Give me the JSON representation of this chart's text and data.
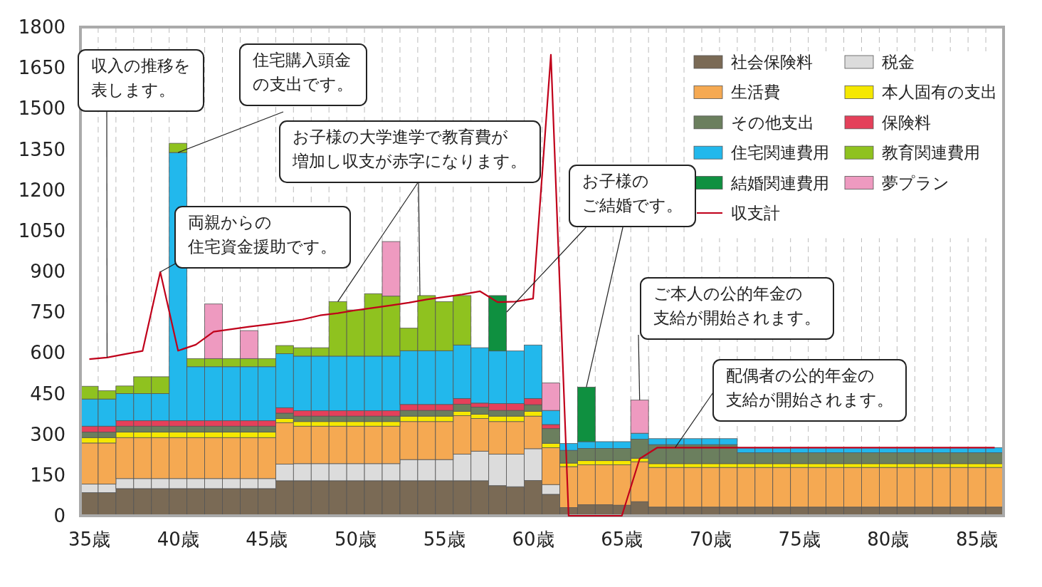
{
  "chart_data": {
    "type": "bar",
    "stacked": true,
    "x": [
      35,
      36,
      37,
      38,
      39,
      40,
      41,
      42,
      43,
      44,
      45,
      46,
      47,
      48,
      49,
      50,
      51,
      52,
      53,
      54,
      55,
      56,
      57,
      58,
      59,
      60,
      61,
      62,
      63,
      64,
      65,
      66,
      67,
      68,
      69,
      70,
      71,
      72,
      73,
      74,
      75,
      76,
      77,
      78,
      79,
      80,
      81,
      82,
      83,
      84,
      85,
      86
    ],
    "xlim": [
      34.5,
      86.5
    ],
    "xticks": [
      {
        "value": 35,
        "label": "35歳"
      },
      {
        "value": 40,
        "label": "40歳"
      },
      {
        "value": 45,
        "label": "45歳"
      },
      {
        "value": 50,
        "label": "50歳"
      },
      {
        "value": 55,
        "label": "55歳"
      },
      {
        "value": 60,
        "label": "60歳"
      },
      {
        "value": 65,
        "label": "65歳"
      },
      {
        "value": 70,
        "label": "70歳"
      },
      {
        "value": 75,
        "label": "75歳"
      },
      {
        "value": 80,
        "label": "80歳"
      },
      {
        "value": 85,
        "label": "85歳"
      }
    ],
    "series": [
      {
        "name": "社会保険料",
        "color": "#7a6a55",
        "values": [
          85,
          85,
          100,
          100,
          100,
          100,
          100,
          100,
          100,
          100,
          100,
          129,
          129,
          129,
          129,
          129,
          129,
          129,
          129,
          129,
          129,
          129,
          129,
          111,
          107,
          130,
          79,
          30,
          41,
          41,
          39,
          52,
          32,
          32,
          32,
          32,
          32,
          32,
          32,
          32,
          32,
          32,
          32,
          32,
          32,
          32,
          32,
          32,
          32,
          32,
          32,
          32
        ]
      },
      {
        "name": "税金",
        "color": "#dcdcdc",
        "values": [
          32,
          32,
          37,
          37,
          37,
          37,
          37,
          37,
          37,
          37,
          37,
          61,
          63,
          63,
          63,
          63,
          63,
          63,
          78,
          78,
          78,
          98,
          109,
          116,
          120,
          117,
          36,
          0,
          0,
          0,
          0,
          0,
          0,
          0,
          0,
          0,
          0,
          0,
          0,
          0,
          0,
          0,
          0,
          0,
          0,
          0,
          0,
          0,
          0,
          0,
          0,
          0
        ]
      },
      {
        "name": "生活費",
        "color": "#f5a952",
        "values": [
          151,
          151,
          151,
          151,
          151,
          151,
          151,
          151,
          151,
          151,
          151,
          153,
          138,
          138,
          138,
          138,
          138,
          138,
          140,
          140,
          140,
          142,
          120,
          120,
          120,
          120,
          136,
          151,
          147,
          147,
          149,
          147,
          146,
          146,
          146,
          146,
          146,
          146,
          146,
          146,
          146,
          146,
          146,
          146,
          146,
          146,
          146,
          146,
          146,
          146,
          146,
          146
        ]
      },
      {
        "name": "本人固有の支出",
        "color": "#f5e800",
        "values": [
          20,
          20,
          20,
          20,
          20,
          20,
          20,
          20,
          20,
          20,
          20,
          15,
          17,
          17,
          17,
          17,
          17,
          17,
          20,
          20,
          20,
          16,
          16,
          20,
          20,
          18,
          16,
          13,
          15,
          15,
          15,
          13,
          14,
          14,
          14,
          14,
          14,
          14,
          14,
          14,
          14,
          14,
          14,
          14,
          14,
          14,
          14,
          14,
          14,
          14,
          14,
          14
        ]
      },
      {
        "name": "その他支出",
        "color": "#6b7f5e",
        "values": [
          20,
          20,
          22,
          22,
          22,
          22,
          22,
          22,
          22,
          22,
          22,
          20,
          20,
          20,
          20,
          20,
          20,
          20,
          21,
          21,
          21,
          26,
          26,
          21,
          21,
          24,
          54,
          47,
          45,
          45,
          45,
          70,
          70,
          70,
          70,
          70,
          70,
          40,
          40,
          40,
          40,
          40,
          40,
          40,
          40,
          40,
          40,
          40,
          40,
          40,
          40,
          40
        ]
      },
      {
        "name": "保険料",
        "color": "#e4405a",
        "values": [
          22,
          22,
          20,
          20,
          20,
          20,
          20,
          20,
          20,
          20,
          20,
          20,
          20,
          20,
          20,
          20,
          20,
          20,
          22,
          22,
          22,
          21,
          15,
          25,
          25,
          23,
          15,
          0,
          0,
          0,
          0,
          0,
          0,
          0,
          0,
          0,
          0,
          0,
          0,
          0,
          0,
          0,
          0,
          0,
          0,
          0,
          0,
          0,
          0,
          0,
          0,
          0
        ]
      },
      {
        "name": "住宅関連費用",
        "color": "#22b8ec",
        "values": [
          100,
          100,
          100,
          100,
          100,
          988,
          199,
          199,
          199,
          199,
          199,
          199,
          201,
          201,
          201,
          201,
          201,
          201,
          198,
          198,
          198,
          197,
          204,
          194,
          194,
          197,
          52,
          25,
          25,
          25,
          25,
          22,
          22,
          22,
          22,
          22,
          22,
          19,
          19,
          19,
          19,
          19,
          19,
          19,
          19,
          19,
          19,
          19,
          19,
          19,
          19,
          19
        ]
      },
      {
        "name": "教育関連費用",
        "color": "#8fc21f",
        "values": [
          47,
          31,
          28,
          62,
          62,
          34,
          30,
          30,
          30,
          30,
          30,
          30,
          31,
          31,
          201,
          170,
          230,
          221,
          83,
          203,
          181,
          182,
          0,
          0,
          0,
          0,
          0,
          0,
          0,
          0,
          0,
          0,
          0,
          0,
          0,
          0,
          0,
          0,
          0,
          0,
          0,
          0,
          0,
          0,
          0,
          0,
          0,
          0,
          0,
          0,
          0,
          0
        ]
      },
      {
        "name": "結婚関連費用",
        "color": "#0f9040",
        "values": [
          0,
          0,
          0,
          0,
          0,
          0,
          0,
          0,
          0,
          0,
          0,
          0,
          0,
          0,
          0,
          0,
          0,
          0,
          0,
          0,
          0,
          0,
          0,
          204,
          0,
          0,
          0,
          0,
          201,
          0,
          0,
          0,
          0,
          0,
          0,
          0,
          0,
          0,
          0,
          0,
          0,
          0,
          0,
          0,
          0,
          0,
          0,
          0,
          0,
          0,
          0,
          0
        ]
      },
      {
        "name": "夢プラン",
        "color": "#ee9ac0",
        "values": [
          0,
          0,
          0,
          0,
          0,
          0,
          0,
          201,
          0,
          103,
          0,
          0,
          0,
          0,
          0,
          0,
          0,
          201,
          0,
          0,
          0,
          0,
          0,
          0,
          0,
          0,
          101,
          0,
          0,
          0,
          0,
          122,
          0,
          0,
          0,
          0,
          0,
          0,
          0,
          0,
          0,
          0,
          0,
          0,
          0,
          0,
          0,
          0,
          0,
          0,
          0,
          0
        ]
      },
      {
        "name": "収支計",
        "type": "line",
        "color": "#c0001a",
        "values": [
          577,
          583,
          595,
          607,
          898,
          608,
          630,
          678,
          687,
          696,
          704,
          713,
          723,
          738,
          746,
          757,
          766,
          775,
          785,
          797,
          806,
          815,
          827,
          787,
          789,
          800,
          1698,
          0,
          0,
          0,
          0,
          210,
          251,
          251,
          251,
          251,
          251,
          251,
          251,
          251,
          251,
          251,
          251,
          251,
          251,
          251,
          251,
          251,
          251,
          251,
          251,
          251
        ]
      }
    ],
    "ylim": [
      0,
      1800
    ],
    "yticks": [
      0,
      150,
      300,
      450,
      600,
      750,
      900,
      1050,
      1200,
      1350,
      1500,
      1650,
      1800
    ],
    "grid": "x",
    "legend": "top right",
    "annotations": [
      {
        "text": "収入の推移を表します。",
        "x": 36,
        "y": 583
      },
      {
        "text": "住宅購入頭金の支出です。",
        "x": 40,
        "y": 1338
      },
      {
        "text": "お子様の大学進学で教育費が増加し収支が赤字になります。",
        "x": 49,
        "y": 789
      },
      {
        "text": "両親からの住宅資金援助です。",
        "x": 39,
        "y": 898
      },
      {
        "text": "お子様のご結婚です。",
        "x": 63,
        "y": 474
      },
      {
        "text": "ご本人の公的年金の支給が開始されます。",
        "x": 66,
        "y": 426
      },
      {
        "text": "配偶者の公的年金の支給が開始されます。",
        "x": 68,
        "y": 251
      }
    ]
  }
}
